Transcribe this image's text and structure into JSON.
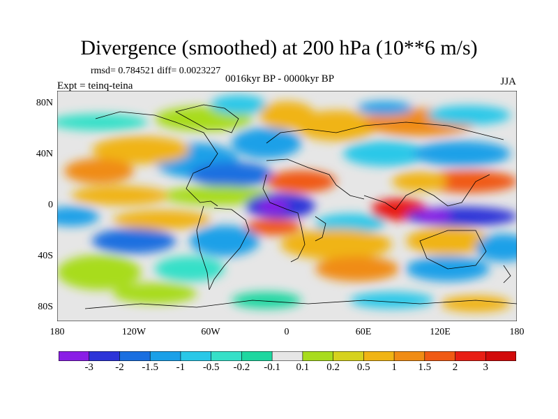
{
  "title": "Divergence (smoothed) at 200 hPa (10**6 m/s)",
  "stats": "rmsd= 0.784521 diff= 0.0023227",
  "experiment": "Expt = teinq-teina",
  "period": "0016kyr BP - 0000kyr BP",
  "season": "JJA",
  "y_axis": {
    "ticks": [
      "80N",
      "40N",
      "0",
      "40S",
      "80S"
    ]
  },
  "x_axis": {
    "ticks": [
      "180",
      "120W",
      "60W",
      "0",
      "60E",
      "120E",
      "180"
    ]
  },
  "colorbar": {
    "labels": [
      "-3",
      "-2",
      "-1.5",
      "-1",
      "-0.5",
      "-0.2",
      "-0.1",
      "0.1",
      "0.2",
      "0.5",
      "1",
      "1.5",
      "2",
      "3"
    ],
    "colors": [
      "#8a1ee6",
      "#2d34d8",
      "#1a6fe0",
      "#1aa0e8",
      "#29c8e8",
      "#36e0c8",
      "#1ed7a0",
      "#e6e6e6",
      "#a8dc1e",
      "#d6d21e",
      "#f0b414",
      "#f08c14",
      "#f05a14",
      "#e81e14",
      "#d20a0a"
    ]
  }
}
